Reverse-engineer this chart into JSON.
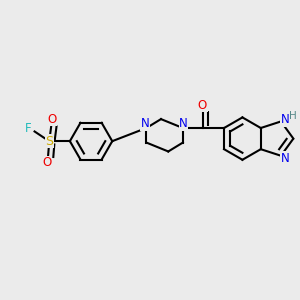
{
  "background_color": "#ebebeb",
  "bond_color": "#000000",
  "bond_width": 1.5,
  "colors": {
    "N": "#0000ee",
    "O": "#ee0000",
    "S": "#ccaa00",
    "F": "#22bbbb",
    "H": "#558888",
    "C": "#000000"
  },
  "figsize": [
    3.0,
    3.0
  ],
  "dpi": 100
}
